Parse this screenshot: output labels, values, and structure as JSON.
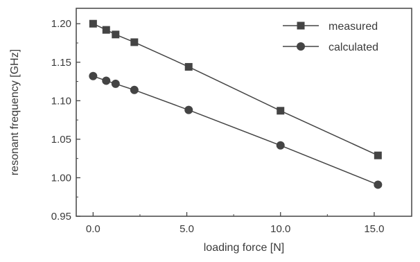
{
  "chart_data": {
    "type": "line",
    "title": "",
    "xlabel": "loading force [N]",
    "ylabel": "resonant  frequency [GHz]",
    "xlim": [
      -0.9,
      17.0
    ],
    "ylim": [
      0.95,
      1.22
    ],
    "xticks": [
      0.0,
      5.0,
      10.0,
      15.0
    ],
    "xtick_labels": [
      "0.0",
      "5.0",
      "10.0",
      "15.0"
    ],
    "yticks": [
      0.95,
      1.0,
      1.05,
      1.1,
      1.15,
      1.2
    ],
    "ytick_labels": [
      "0.95",
      "1.00",
      "1.05",
      "1.10",
      "1.15",
      "1.20"
    ],
    "grid": false,
    "legend_position": "top-right",
    "series": [
      {
        "name": "measured",
        "marker": "square",
        "color": "#444444",
        "x": [
          0.0,
          0.7,
          1.2,
          2.2,
          5.1,
          10.0,
          15.2
        ],
        "y": [
          1.2,
          1.192,
          1.186,
          1.176,
          1.144,
          1.087,
          1.029
        ]
      },
      {
        "name": "calculated",
        "marker": "circle",
        "color": "#444444",
        "x": [
          0.0,
          0.7,
          1.2,
          2.2,
          5.1,
          10.0,
          15.2
        ],
        "y": [
          1.132,
          1.126,
          1.122,
          1.114,
          1.088,
          1.042,
          0.991
        ]
      }
    ]
  }
}
